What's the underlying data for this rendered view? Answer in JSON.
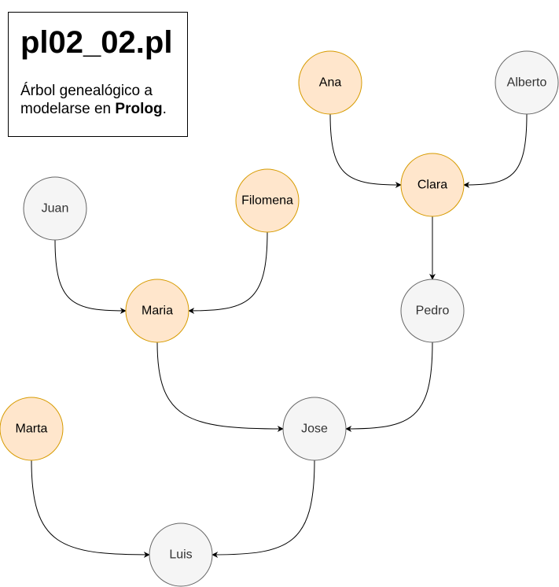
{
  "header": {
    "title": "pl02_02.pl",
    "desc_before": "Árbol genealógico a modelarse en ",
    "desc_bold": "Prolog",
    "desc_after": "."
  },
  "colors": {
    "female_fill": "#ffe6cc",
    "female_stroke": "#d79b00",
    "male_fill": "#f5f5f5",
    "male_stroke": "#666666",
    "edge": "#000000"
  },
  "nodes": [
    {
      "id": "ana",
      "label": "Ana",
      "kind": "female"
    },
    {
      "id": "alberto",
      "label": "Alberto",
      "kind": "male"
    },
    {
      "id": "clara",
      "label": "Clara",
      "kind": "female"
    },
    {
      "id": "juan",
      "label": "Juan",
      "kind": "male"
    },
    {
      "id": "filomena",
      "label": "Filomena",
      "kind": "female"
    },
    {
      "id": "maria",
      "label": "Maria",
      "kind": "female"
    },
    {
      "id": "pedro",
      "label": "Pedro",
      "kind": "male"
    },
    {
      "id": "marta",
      "label": "Marta",
      "kind": "female"
    },
    {
      "id": "jose",
      "label": "Jose",
      "kind": "male"
    },
    {
      "id": "luis",
      "label": "Luis",
      "kind": "male"
    }
  ],
  "edges": [
    {
      "from": "ana",
      "to": "clara"
    },
    {
      "from": "alberto",
      "to": "clara"
    },
    {
      "from": "clara",
      "to": "pedro"
    },
    {
      "from": "juan",
      "to": "maria"
    },
    {
      "from": "filomena",
      "to": "maria"
    },
    {
      "from": "maria",
      "to": "jose"
    },
    {
      "from": "pedro",
      "to": "jose"
    },
    {
      "from": "marta",
      "to": "luis"
    },
    {
      "from": "jose",
      "to": "luis"
    }
  ]
}
